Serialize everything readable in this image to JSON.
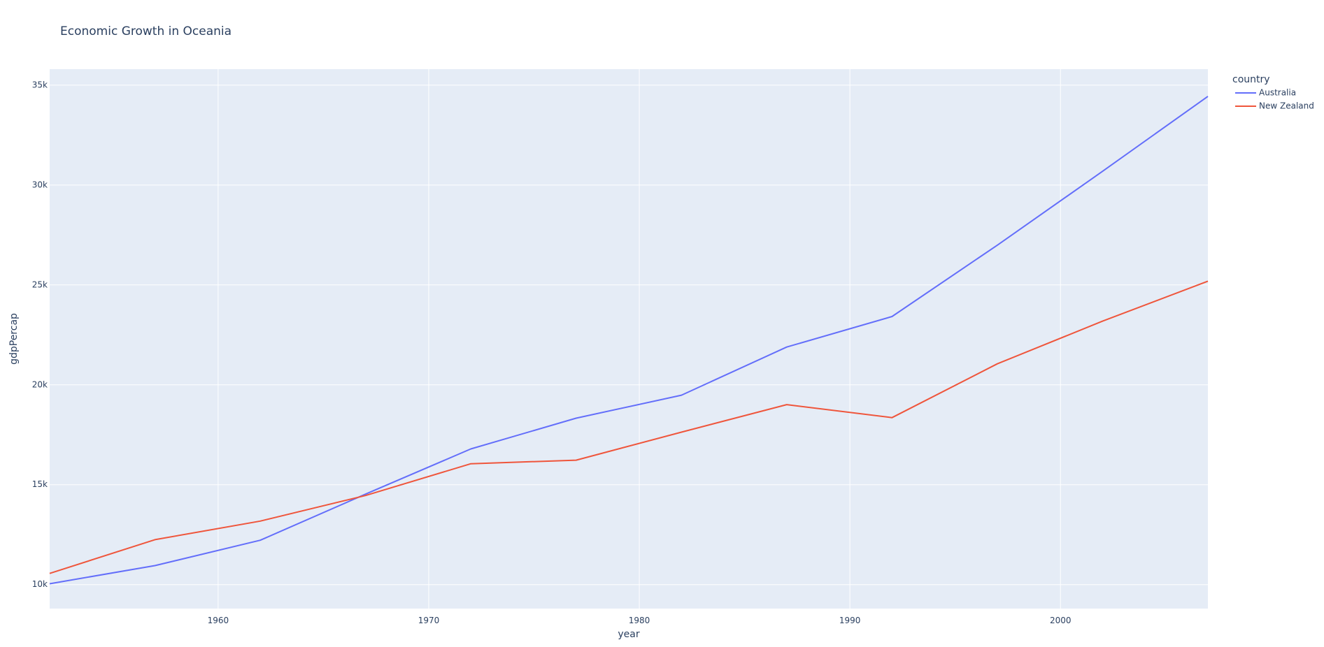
{
  "chart_data": {
    "type": "line",
    "title": "Economic Growth in Oceania",
    "xlabel": "year",
    "ylabel": "gdpPercap",
    "legend_title": "country",
    "legend_position": "top-right",
    "grid": true,
    "xlim": [
      1952,
      2007
    ],
    "ylim": [
      8800,
      35800
    ],
    "x_ticks": [
      1960,
      1970,
      1980,
      1990,
      2000
    ],
    "x_tick_labels": [
      "1960",
      "1970",
      "1980",
      "1990",
      "2000"
    ],
    "y_ticks": [
      10000,
      15000,
      20000,
      25000,
      30000,
      35000
    ],
    "y_tick_labels": [
      "10k",
      "15k",
      "20k",
      "25k",
      "30k",
      "35k"
    ],
    "plot_bg": "#e5ecf6",
    "x": [
      1952,
      1957,
      1962,
      1967,
      1972,
      1977,
      1982,
      1987,
      1992,
      1997,
      2002,
      2007
    ],
    "series": [
      {
        "name": "Australia",
        "color": "#636efa",
        "values": [
          10040,
          10950,
          12220,
          14530,
          16790,
          18330,
          19480,
          21890,
          23420,
          26990,
          30690,
          34440
        ]
      },
      {
        "name": "New Zealand",
        "color": "#ef553b",
        "values": [
          10560,
          12250,
          13180,
          14460,
          16050,
          16230,
          17630,
          19010,
          18360,
          21050,
          23190,
          25190
        ]
      }
    ]
  }
}
